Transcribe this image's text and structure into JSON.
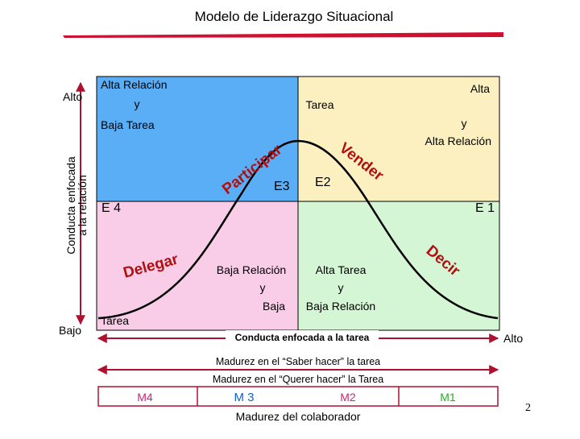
{
  "title": "Modelo de Liderazgo Situacional",
  "y_axis": {
    "high": "Alto",
    "low": "Bajo",
    "label": [
      "Conducta enfocada",
      "a la relación"
    ]
  },
  "quadrants": {
    "top_left": [
      "Alta Relación",
      "y",
      "Baja Tarea"
    ],
    "top_right": [
      "Alta",
      "Tarea",
      "y",
      "Alta Relación"
    ],
    "bottom_right_left": [
      "Baja Relación",
      "y",
      "Baja"
    ],
    "bottom_right_right": [
      "Alta Tarea",
      "y",
      "Baja Relación"
    ],
    "bottom_left": [
      "Tarea"
    ]
  },
  "styles": {
    "participar": "Participar",
    "vender": "Vender",
    "decir": "Decir",
    "delegar": "Delegar"
  },
  "stages": {
    "e3": "E3",
    "e2": "E2",
    "e4": "E 4",
    "e1": "E 1"
  },
  "x_axis": {
    "label": "Conducta enfocada a la tarea",
    "high": "Alto"
  },
  "maturity": {
    "saber": "Madurez en el “Saber hacer” la tarea",
    "querer": "Madurez en el “Querer hacer” la Tarea",
    "levels": [
      "M4",
      "M 3",
      "M2",
      "M1"
    ],
    "label": "Madurez del colaborador"
  },
  "page_number": "2"
}
